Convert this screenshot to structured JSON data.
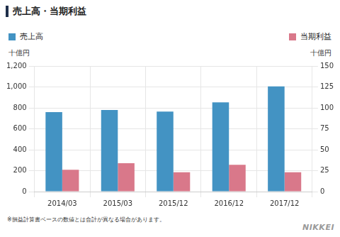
{
  "chart_data": {
    "type": "bar",
    "title": "売上高・当期利益",
    "categories": [
      "2014/03",
      "2015/03",
      "2015/12",
      "2016/12",
      "2017/12"
    ],
    "series": [
      {
        "name": "売上高",
        "color": "#4393c3",
        "values": [
          760,
          780,
          765,
          852,
          1005
        ]
      },
      {
        "name": "当期利益",
        "color": "#d9788a",
        "values": [
          26,
          34,
          23,
          32,
          23
        ],
        "axis": "y2"
      }
    ],
    "y_label": "十億円",
    "y2_label": "十億円",
    "ylim": [
      0,
      1200
    ],
    "yticks": [
      0,
      200,
      400,
      600,
      800,
      1000,
      1200
    ],
    "y2lim": [
      0,
      150
    ],
    "y2ticks": [
      0,
      25,
      50,
      75,
      100,
      125,
      150
    ],
    "grid": true,
    "legend": "top",
    "annotations": [
      "※損益計算書ベースの数値とは合計が異なる場合があります。",
      "NIKKEI"
    ]
  }
}
